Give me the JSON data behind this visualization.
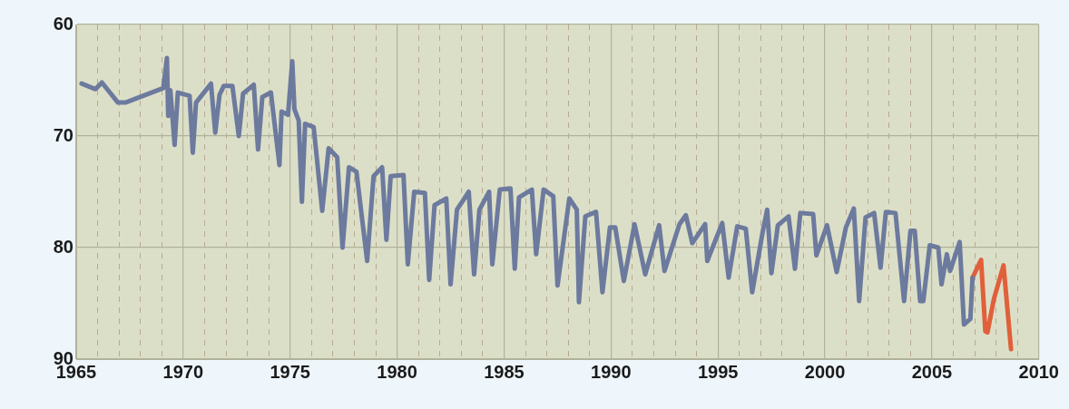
{
  "chart_data": {
    "type": "line",
    "xlim": [
      1965,
      2010
    ],
    "xticks": [
      1965,
      {
        "value": 1966,
        "label": null
      },
      {
        "value": 1967,
        "label": null
      },
      {
        "value": 1968,
        "label": null
      },
      {
        "value": 1969,
        "label": null
      },
      1970,
      {
        "value": 1971,
        "label": null
      },
      {
        "value": 1972,
        "label": null
      },
      {
        "value": 1973,
        "label": null
      },
      {
        "value": 1974,
        "label": null
      },
      1975,
      {
        "value": 1976,
        "label": null
      },
      {
        "value": 1977,
        "label": null
      },
      {
        "value": 1978,
        "label": null
      },
      {
        "value": 1979,
        "label": null
      },
      1980,
      {
        "value": 1981,
        "label": null
      },
      {
        "value": 1982,
        "label": null
      },
      {
        "value": 1983,
        "label": null
      },
      {
        "value": 1984,
        "label": null
      },
      1985,
      {
        "value": 1986,
        "label": null
      },
      {
        "value": 1987,
        "label": null
      },
      {
        "value": 1988,
        "label": null
      },
      {
        "value": 1989,
        "label": null
      },
      1990,
      {
        "value": 1991,
        "label": null
      },
      {
        "value": 1992,
        "label": null
      },
      {
        "value": 1993,
        "label": null
      },
      {
        "value": 1994,
        "label": null
      },
      1995,
      {
        "value": 1996,
        "label": null
      },
      {
        "value": 1997,
        "label": null
      },
      {
        "value": 1998,
        "label": null
      },
      {
        "value": 1999,
        "label": null
      },
      2000,
      {
        "value": 2001,
        "label": null
      },
      {
        "value": 2002,
        "label": null
      },
      {
        "value": 2003,
        "label": null
      },
      {
        "value": 2004,
        "label": null
      },
      2005,
      {
        "value": 2006,
        "label": null
      },
      {
        "value": 2007,
        "label": null
      },
      {
        "value": 2008,
        "label": null
      },
      {
        "value": 2009,
        "label": null
      },
      2010
    ],
    "ylim": [
      90,
      60
    ],
    "yticks": [
      60,
      70,
      80,
      90
    ],
    "grid": true,
    "legend": false,
    "marker": "none",
    "line_style": "solid",
    "series": [
      {
        "color": "#6c7a9e",
        "x": [
          1965.25,
          1965.9,
          1966.2,
          1966.95,
          1967.3,
          1969.07,
          1969.24,
          1969.3,
          1969.4,
          1969.6,
          1969.75,
          1970.3,
          1970.45,
          1970.6,
          1971.3,
          1971.5,
          1971.7,
          1971.9,
          1972.3,
          1972.6,
          1972.8,
          1973.3,
          1973.5,
          1973.7,
          1974.1,
          1974.5,
          1974.6,
          1974.9,
          1975.1,
          1975.2,
          1975.4,
          1975.55,
          1975.7,
          1976.1,
          1976.5,
          1976.8,
          1977.2,
          1977.45,
          1977.75,
          1978.1,
          1978.6,
          1978.9,
          1979.3,
          1979.5,
          1979.7,
          1980.3,
          1980.5,
          1980.8,
          1981.3,
          1981.5,
          1981.75,
          1982.3,
          1982.5,
          1982.8,
          1983.35,
          1983.6,
          1983.85,
          1984.3,
          1984.45,
          1984.8,
          1985.3,
          1985.5,
          1985.7,
          1986.3,
          1986.5,
          1986.85,
          1987.3,
          1987.5,
          1988.05,
          1988.4,
          1988.5,
          1988.8,
          1989.3,
          1989.6,
          1989.95,
          1990.2,
          1990.6,
          1991.1,
          1991.6,
          1992.25,
          1992.5,
          1993.2,
          1993.5,
          1993.8,
          1994.4,
          1994.5,
          1995.2,
          1995.5,
          1995.9,
          1996.3,
          1996.6,
          1997.1,
          1997.3,
          1997.5,
          1997.8,
          1998.3,
          1998.6,
          1998.85,
          1999.45,
          1999.6,
          2000.1,
          2000.55,
          2000.98,
          2001.35,
          2001.6,
          2001.9,
          2002.3,
          2002.6,
          2002.85,
          2003.3,
          2003.7,
          2004.0,
          2004.2,
          2004.45,
          2004.6,
          2004.9,
          2005.3,
          2005.45,
          2005.7,
          2005.85,
          2006.3,
          2006.5,
          2006.8,
          2006.9
        ],
        "values": [
          65.3,
          65.8,
          65.2,
          67.0,
          67.0,
          65.7,
          63.0,
          68.2,
          65.9,
          70.8,
          66.1,
          66.4,
          71.5,
          67.0,
          65.3,
          69.7,
          66.3,
          65.5,
          65.5,
          70.0,
          66.2,
          65.4,
          71.2,
          66.5,
          66.1,
          72.6,
          67.8,
          68.1,
          63.3,
          67.6,
          68.6,
          75.9,
          68.9,
          69.2,
          76.7,
          71.1,
          71.9,
          80.0,
          72.8,
          73.2,
          81.2,
          73.6,
          72.8,
          79.3,
          73.6,
          73.5,
          81.5,
          75.0,
          75.1,
          82.9,
          76.2,
          75.6,
          83.3,
          76.6,
          75.0,
          82.4,
          76.6,
          75.0,
          81.5,
          74.8,
          74.7,
          81.9,
          75.5,
          74.8,
          80.6,
          74.8,
          75.4,
          83.4,
          75.6,
          76.6,
          84.9,
          77.2,
          76.8,
          84.0,
          78.2,
          78.2,
          83.0,
          77.9,
          82.4,
          78.0,
          82.1,
          77.9,
          77.1,
          79.6,
          77.9,
          81.2,
          77.8,
          82.7,
          78.1,
          78.3,
          84.0,
          78.5,
          76.6,
          82.3,
          78.0,
          77.2,
          81.9,
          76.9,
          77.0,
          80.7,
          78.0,
          82.2,
          78.2,
          76.5,
          84.8,
          77.3,
          76.9,
          81.8,
          76.8,
          76.9,
          84.8,
          78.5,
          78.5,
          84.8,
          84.8,
          79.8,
          80.0,
          83.3,
          80.6,
          82.1,
          79.5,
          86.9,
          86.4,
          82.7
        ]
      },
      {
        "color": "#e0603a",
        "x": [
          2006.9,
          2007.3,
          2007.5,
          2007.6,
          2007.9,
          2008.35,
          2008.7
        ],
        "values": [
          82.7,
          81.1,
          87.5,
          87.6,
          84.6,
          81.6,
          89.1
        ]
      }
    ]
  }
}
